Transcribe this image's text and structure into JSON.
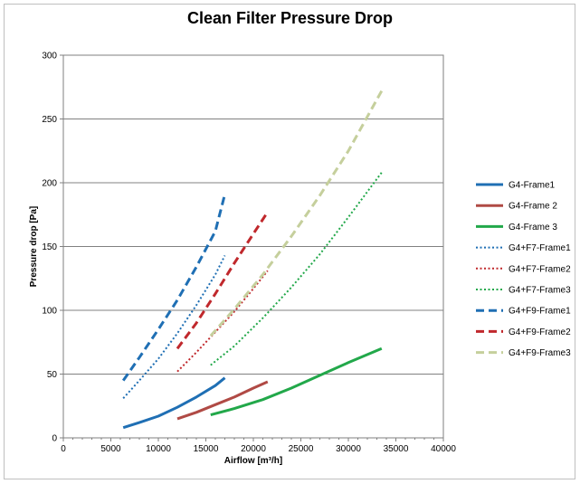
{
  "chart_data": {
    "type": "line",
    "title": "Clean Filter Pressure Drop",
    "xlabel": "Airflow [m³/h]",
    "ylabel": "Pressure drop [Pa]",
    "xlim": [
      0,
      40000
    ],
    "ylim": [
      0,
      300
    ],
    "x_ticks": [
      0,
      5000,
      10000,
      15000,
      20000,
      25000,
      30000,
      35000,
      40000
    ],
    "y_ticks": [
      0,
      50,
      100,
      150,
      200,
      250,
      300
    ],
    "grid": "horizontal",
    "legend_position": "right",
    "series": [
      {
        "name": "G4-Frame1",
        "color": "#1f6fb4",
        "dash": "solid",
        "x": [
          6300,
          8000,
          10000,
          12000,
          14000,
          16000,
          17000
        ],
        "y": [
          8,
          12,
          17,
          24,
          32,
          41,
          47
        ]
      },
      {
        "name": "G4-Frame 2",
        "color": "#b04a45",
        "dash": "solid",
        "x": [
          12000,
          14000,
          16000,
          18000,
          20000,
          21500
        ],
        "y": [
          15,
          20,
          26,
          32,
          39,
          44
        ]
      },
      {
        "name": "G4-Frame 3",
        "color": "#22a84a",
        "dash": "solid",
        "x": [
          15500,
          18000,
          21000,
          24000,
          27000,
          30000,
          33500
        ],
        "y": [
          18,
          23,
          30,
          39,
          49,
          59,
          70
        ]
      },
      {
        "name": "G4+F7-Frame1",
        "color": "#1f6fb4",
        "dash": "dot",
        "x": [
          6300,
          8000,
          10000,
          12000,
          14000,
          16000,
          17000
        ],
        "y": [
          31,
          45,
          62,
          82,
          104,
          128,
          143
        ]
      },
      {
        "name": "G4+F7-Frame2",
        "color": "#c0282c",
        "dash": "dot",
        "x": [
          12000,
          14000,
          16000,
          18000,
          20000,
          21500
        ],
        "y": [
          52,
          67,
          83,
          99,
          117,
          131
        ]
      },
      {
        "name": "G4+F7-Frame3",
        "color": "#22a84a",
        "dash": "dot",
        "x": [
          15500,
          18000,
          21000,
          24000,
          27000,
          30000,
          33500
        ],
        "y": [
          57,
          72,
          94,
          118,
          144,
          173,
          208
        ]
      },
      {
        "name": "G4+F9-Frame1",
        "color": "#1f6fb4",
        "dash": "dash",
        "x": [
          6300,
          8000,
          10000,
          12000,
          14000,
          16000,
          17000
        ],
        "y": [
          45,
          63,
          85,
          108,
          134,
          162,
          191
        ]
      },
      {
        "name": "G4+F9-Frame2",
        "color": "#c0282c",
        "dash": "dash",
        "x": [
          12000,
          14000,
          16000,
          18000,
          20000,
          21500
        ],
        "y": [
          70,
          90,
          113,
          137,
          160,
          177
        ]
      },
      {
        "name": "G4+F9-Frame3",
        "color": "#c5cf9c",
        "dash": "dash",
        "x": [
          15500,
          18000,
          21000,
          24000,
          27000,
          30000,
          33500
        ],
        "y": [
          80,
          101,
          128,
          158,
          190,
          225,
          272
        ]
      }
    ]
  }
}
